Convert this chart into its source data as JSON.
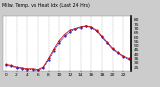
{
  "title": "Milw. Temp. vs Heat Idx (Last 24 Hrs)",
  "hours": [
    0,
    1,
    2,
    3,
    4,
    5,
    6,
    7,
    8,
    9,
    10,
    11,
    12,
    13,
    14,
    15,
    16,
    17,
    18,
    19,
    20,
    21,
    22,
    23
  ],
  "temp": [
    28,
    27,
    25,
    24,
    23,
    23,
    22,
    25,
    35,
    46,
    56,
    63,
    68,
    70,
    72,
    73,
    72,
    68,
    61,
    54,
    47,
    42,
    38,
    35
  ],
  "heat_index": [
    27,
    26,
    24,
    23,
    22,
    22,
    21,
    24,
    33,
    44,
    53,
    61,
    66,
    69,
    71,
    73,
    71,
    67,
    60,
    53,
    46,
    41,
    37,
    34
  ],
  "temp_color": "#cc0000",
  "heat_color": "#0000bb",
  "bg_color": "#cccccc",
  "plot_bg": "#ffffff",
  "ylim_min": 20,
  "ylim_max": 85,
  "yticks": [
    25,
    30,
    35,
    40,
    45,
    50,
    55,
    60,
    65,
    70,
    75,
    80
  ],
  "grid_color": "#999999",
  "tick_fontsize": 3.2,
  "title_fontsize": 3.4,
  "legend_fontsize": 3.0,
  "line_width": 0.55,
  "marker_size": 1.0
}
